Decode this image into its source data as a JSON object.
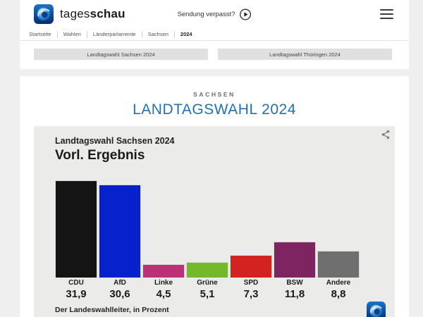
{
  "header": {
    "brand_prefix": "tages",
    "brand_suffix": "schau",
    "sendung_verpasst": "Sendung verpasst?",
    "breadcrumb": [
      "Startseite",
      "Wahlen",
      "Länderparlamente",
      "Sachsen",
      "2024"
    ],
    "nav_buttons": [
      "Landtagswahl Sachsen 2024",
      "Landtagswahl Thüringen 2024"
    ]
  },
  "page": {
    "kicker": "SACHSEN",
    "title": "LANDTAGSWAHL 2024",
    "title_color": "#2371b0"
  },
  "chart_data": {
    "type": "bar",
    "title": "Landtagswahl Sachsen 2024",
    "subtitle": "Vorl. Ergebnis",
    "source": "Der Landeswahlleiter, in Prozent",
    "unit": "Prozent",
    "categories": [
      "CDU",
      "AfD",
      "Linke",
      "Grüne",
      "SPD",
      "BSW",
      "Andere"
    ],
    "values": [
      31.9,
      30.6,
      4.5,
      5.1,
      7.3,
      11.8,
      8.8
    ],
    "value_labels": [
      "31,9",
      "30,6",
      "4,5",
      "5,1",
      "7,3",
      "11,8",
      "8,8"
    ],
    "colors": [
      "#141414",
      "#0722cc",
      "#bc3075",
      "#73b92b",
      "#d22321",
      "#7e2460",
      "#6f6f6f"
    ],
    "ylim": [
      0,
      32
    ],
    "grid": false,
    "legend": false
  }
}
